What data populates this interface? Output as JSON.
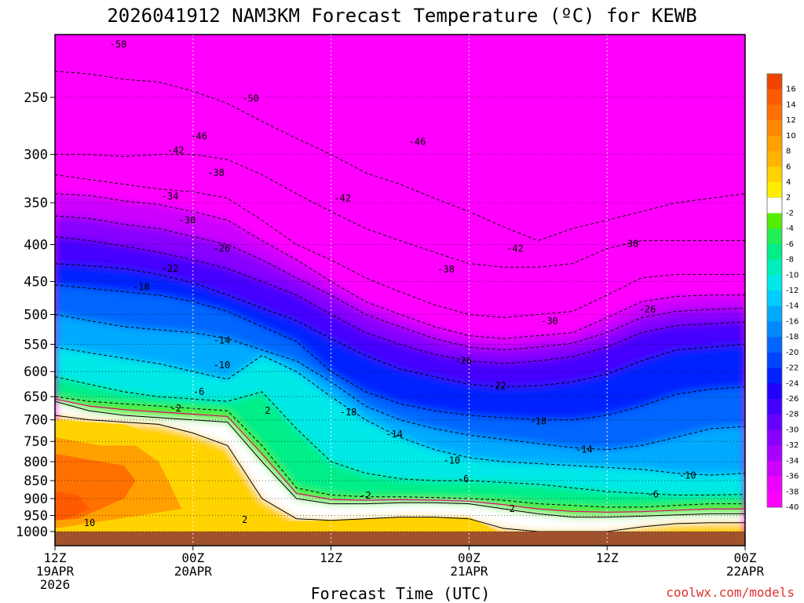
{
  "chart_data": {
    "type": "heatmap",
    "title": "2026041912 NAM3KM Forecast Temperature (ºC) for KEWB",
    "xlabel": "Forecast Time (UTC)",
    "ylabel": "",
    "y_ticks": [
      "250",
      "300",
      "350",
      "400",
      "450",
      "500",
      "550",
      "600",
      "650",
      "700",
      "750",
      "800",
      "850",
      "900",
      "950",
      "1000"
    ],
    "x_ticks": [
      {
        "line1": "12Z",
        "line2": "19APR",
        "line3": "2026"
      },
      {
        "line1": "00Z",
        "line2": "20APR",
        "line3": ""
      },
      {
        "line1": "12Z",
        "line2": "",
        "line3": ""
      },
      {
        "line1": "00Z",
        "line2": "21APR",
        "line3": ""
      },
      {
        "line1": "12Z",
        "line2": "",
        "line3": ""
      },
      {
        "line1": "00Z",
        "line2": "22APR",
        "line3": ""
      }
    ],
    "x_hours": [
      0,
      12,
      24,
      36,
      48,
      60
    ],
    "ylim_hpa": [
      1030,
      200
    ],
    "colorbar_labels": [
      "16",
      "14",
      "12",
      "10",
      "8",
      "6",
      "4",
      "2",
      "-2",
      "-4",
      "-6",
      "-8",
      "-10",
      "-12",
      "-14",
      "-16",
      "-18",
      "-20",
      "-22",
      "-24",
      "-26",
      "-28",
      "-30",
      "-32",
      "-34",
      "-36",
      "-38",
      "-40"
    ],
    "colorbar_colors": [
      "#ee4400",
      "#ff5a00",
      "#ff7000",
      "#ff8800",
      "#ffa000",
      "#ffb400",
      "#ffd200",
      "#ffee00",
      "#ffffff",
      "#55ee00",
      "#22ee55",
      "#00ee88",
      "#00eebb",
      "#00e8e8",
      "#00ccff",
      "#00aaff",
      "#0088ff",
      "#0066ff",
      "#0044ff",
      "#0022ff",
      "#2200ff",
      "#4400ff",
      "#6600ff",
      "#8800ff",
      "#aa00ff",
      "#cc00ff",
      "#ee00ff",
      "#ff00ff"
    ],
    "contour_labels": [
      {
        "t": "-58",
        "h": 5.5,
        "p": 211
      },
      {
        "t": "-50",
        "h": 17,
        "p": 251
      },
      {
        "t": "-46",
        "h": 12.5,
        "p": 283
      },
      {
        "t": "-42",
        "h": 10.5,
        "p": 296
      },
      {
        "t": "-38",
        "h": 14,
        "p": 318
      },
      {
        "t": "-34",
        "h": 10,
        "p": 343
      },
      {
        "t": "-30",
        "h": 11.5,
        "p": 370
      },
      {
        "t": "-26",
        "h": 14.5,
        "p": 405
      },
      {
        "t": "-22",
        "h": 10,
        "p": 432
      },
      {
        "t": "-18",
        "h": 7.5,
        "p": 458
      },
      {
        "t": "-14",
        "h": 14.5,
        "p": 543
      },
      {
        "t": "-10",
        "h": 14.5,
        "p": 588
      },
      {
        "t": "-6",
        "h": 12.5,
        "p": 640
      },
      {
        "t": "-2",
        "h": 10.5,
        "p": 675
      },
      {
        "t": "-46",
        "h": 31.5,
        "p": 288
      },
      {
        "t": "-42",
        "h": 25,
        "p": 345
      },
      {
        "t": "-42",
        "h": 40,
        "p": 405
      },
      {
        "t": "-38",
        "h": 34,
        "p": 433
      },
      {
        "t": "-38",
        "h": 50,
        "p": 399
      },
      {
        "t": "-30",
        "h": 43,
        "p": 511
      },
      {
        "t": "-26",
        "h": 51.5,
        "p": 492
      },
      {
        "t": "-26",
        "h": 35.5,
        "p": 580
      },
      {
        "t": "-22",
        "h": 38.5,
        "p": 628
      },
      {
        "t": "-18",
        "h": 25.5,
        "p": 683
      },
      {
        "t": "-18",
        "h": 42,
        "p": 703
      },
      {
        "t": "-14",
        "h": 29.5,
        "p": 733
      },
      {
        "t": "-14",
        "h": 46,
        "p": 770
      },
      {
        "t": "-10",
        "h": 34.5,
        "p": 797
      },
      {
        "t": "-10",
        "h": 55,
        "p": 836
      },
      {
        "t": "-6",
        "h": 35.5,
        "p": 845
      },
      {
        "t": "-6",
        "h": 52,
        "p": 888
      },
      {
        "t": "-2",
        "h": 27,
        "p": 891
      },
      {
        "t": "-2",
        "h": 39.5,
        "p": 930
      },
      {
        "t": "2",
        "h": 18.5,
        "p": 680
      },
      {
        "t": "2",
        "h": 16.5,
        "p": 963
      },
      {
        "t": "10",
        "h": 3,
        "p": 973
      }
    ]
  },
  "credit": "coolwx.com/models",
  "colors": {
    "ground": "#a0522d",
    "zero_contour": "#e0007a",
    "background": "#ffffff"
  }
}
